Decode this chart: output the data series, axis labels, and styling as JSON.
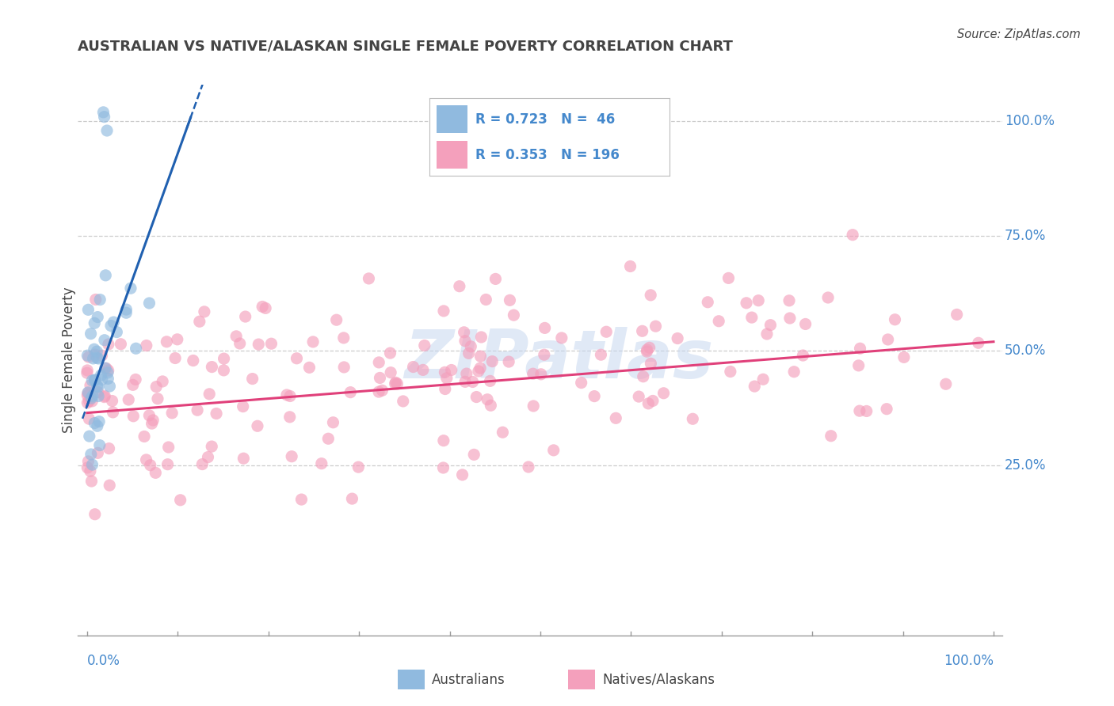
{
  "title": "AUSTRALIAN VS NATIVE/ALASKAN SINGLE FEMALE POVERTY CORRELATION CHART",
  "source": "Source: ZipAtlas.com",
  "ylabel": "Single Female Poverty",
  "right_yticks": [
    "25.0%",
    "50.0%",
    "75.0%",
    "100.0%"
  ],
  "right_ytick_vals": [
    0.25,
    0.5,
    0.75,
    1.0
  ],
  "watermark": "ZIPatlas",
  "watermark_color": "#c8d8f0",
  "blue_color": "#90badf",
  "pink_color": "#f4a0bc",
  "blue_line_color": "#2060b0",
  "pink_line_color": "#e0407a",
  "grid_color": "#cccccc",
  "title_color": "#444444",
  "axis_label_color": "#4488cc",
  "legend_label_color": "#4488cc",
  "R_blue": 0.723,
  "N_blue": 46,
  "R_pink": 0.353,
  "N_pink": 196,
  "blue_slope": 5.5,
  "blue_intercept": 0.38,
  "pink_slope": 0.155,
  "pink_intercept": 0.365,
  "xlim": [
    0.0,
    1.0
  ],
  "ylim": [
    -0.12,
    1.08
  ]
}
